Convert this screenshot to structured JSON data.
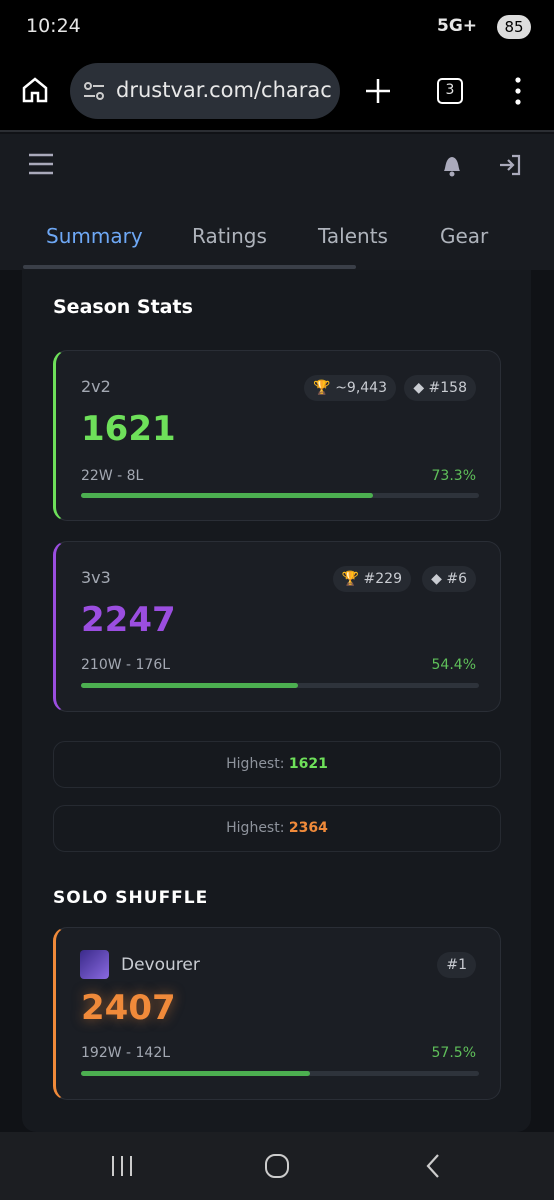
{
  "status_bar": {
    "time": "10:24",
    "network": "5G+",
    "battery": "85"
  },
  "browser": {
    "url": "drustvar.com/charac",
    "tab_count": "3"
  },
  "tabs": [
    "Summary",
    "Ratings",
    "Talents",
    "Gear"
  ],
  "season_stats": {
    "title": "Season Stats",
    "brackets": [
      {
        "name": "2v2",
        "rating": "1621",
        "badges": [
          "~9,443",
          "#158"
        ],
        "record": "22W - 8L",
        "win_rate": "73.3%"
      },
      {
        "name": "3v3",
        "rating": "2247",
        "badges": [
          "#229",
          "#6"
        ],
        "record": "210W - 176L",
        "win_rate": "54.4%"
      }
    ],
    "highest": [
      {
        "label": "Highest:",
        "value": "1621"
      },
      {
        "label": "Highest:",
        "value": "2364"
      }
    ]
  },
  "solo_shuffle": {
    "title": "SOLO SHUFFLE",
    "spec": "Devourer",
    "rank": "#1",
    "rating": "2407",
    "record": "192W - 142L",
    "win_rate": "57.5%"
  }
}
